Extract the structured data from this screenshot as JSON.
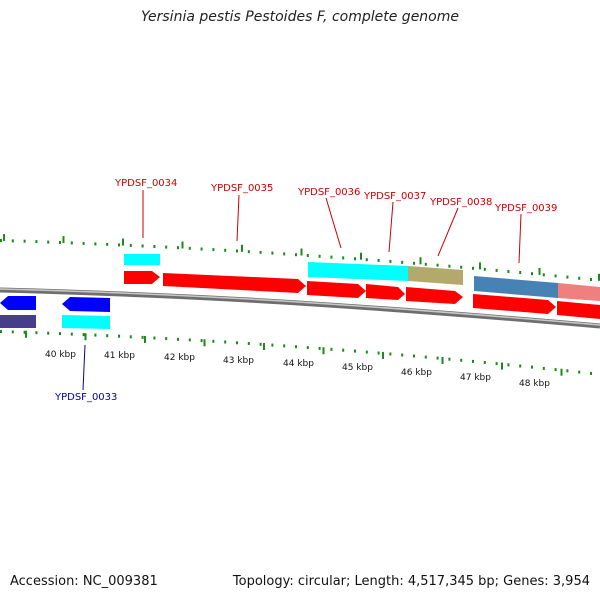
{
  "title": "Yersinia pestis Pestoides F, complete genome",
  "footer": {
    "accession": "Accession: NC_009381",
    "summary": "Topology: circular; Length: 4,517,345 bp; Genes: 3,954"
  },
  "colors": {
    "forward_cds": "#ff0000",
    "reverse_cds": "#0000ff",
    "cyan_feature": "#00ffff",
    "olive_feature": "#b3a96b",
    "steel_feature": "#4682b4",
    "pink_feature": "#f08080",
    "navy_feature": "#483d8b",
    "tick": "#1a8a1a",
    "backbone": "#888888",
    "forward_label": "#cc0000",
    "reverse_label": "#0000aa"
  },
  "scale": {
    "ticks": [
      "40 kbp",
      "41 kbp",
      "42 kbp",
      "43 kbp",
      "44 kbp",
      "45 kbp",
      "46 kbp",
      "47 kbp",
      "48 kbp"
    ]
  },
  "genes": {
    "forward": [
      "YPDSF_0034",
      "YPDSF_0035",
      "YPDSF_0036",
      "YPDSF_0037",
      "YPDSF_0038",
      "YPDSF_0039"
    ],
    "reverse": [
      "YPDSF_0033"
    ]
  }
}
